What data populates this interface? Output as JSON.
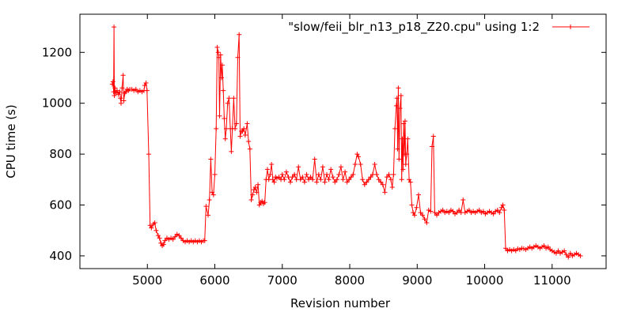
{
  "chart_data": {
    "type": "line",
    "xlabel": "Revision number",
    "ylabel": "CPU time (s)",
    "xlim": [
      4000,
      11800
    ],
    "ylim": [
      350,
      1350
    ],
    "x_ticks": [
      5000,
      6000,
      7000,
      8000,
      9000,
      10000,
      11000
    ],
    "y_ticks": [
      400,
      600,
      800,
      1000,
      1200
    ],
    "grid": false,
    "legend_position": "top-right",
    "color": "#ff0000",
    "marker": "plus",
    "series": [
      {
        "name": "\"slow/feii_blr_n13_p18_Z20.cpu\" using 1:2",
        "points": [
          [
            4480,
            1075
          ],
          [
            4490,
            1085
          ],
          [
            4500,
            1045
          ],
          [
            4505,
            1300
          ],
          [
            4510,
            1030
          ],
          [
            4520,
            1060
          ],
          [
            4530,
            1040
          ],
          [
            4550,
            1050
          ],
          [
            4570,
            1035
          ],
          [
            4590,
            1045
          ],
          [
            4600,
            1020
          ],
          [
            4610,
            1000
          ],
          [
            4625,
            1060
          ],
          [
            4640,
            1110
          ],
          [
            4650,
            1010
          ],
          [
            4665,
            1040
          ],
          [
            4680,
            1045
          ],
          [
            4700,
            1055
          ],
          [
            4720,
            1050
          ],
          [
            4740,
            1055
          ],
          [
            4770,
            1055
          ],
          [
            4800,
            1050
          ],
          [
            4830,
            1055
          ],
          [
            4860,
            1045
          ],
          [
            4890,
            1050
          ],
          [
            4920,
            1045
          ],
          [
            4950,
            1050
          ],
          [
            4960,
            1070
          ],
          [
            4980,
            1080
          ],
          [
            4995,
            1050
          ],
          [
            5020,
            800
          ],
          [
            5040,
            520
          ],
          [
            5060,
            510
          ],
          [
            5090,
            525
          ],
          [
            5110,
            530
          ],
          [
            5130,
            500
          ],
          [
            5160,
            480
          ],
          [
            5180,
            470
          ],
          [
            5200,
            450
          ],
          [
            5220,
            440
          ],
          [
            5240,
            445
          ],
          [
            5260,
            460
          ],
          [
            5290,
            470
          ],
          [
            5320,
            465
          ],
          [
            5350,
            470
          ],
          [
            5380,
            465
          ],
          [
            5410,
            475
          ],
          [
            5440,
            485
          ],
          [
            5470,
            480
          ],
          [
            5500,
            470
          ],
          [
            5530,
            460
          ],
          [
            5560,
            455
          ],
          [
            5590,
            460
          ],
          [
            5620,
            455
          ],
          [
            5650,
            460
          ],
          [
            5680,
            455
          ],
          [
            5710,
            460
          ],
          [
            5740,
            455
          ],
          [
            5770,
            460
          ],
          [
            5800,
            455
          ],
          [
            5830,
            460
          ],
          [
            5850,
            460
          ],
          [
            5870,
            595
          ],
          [
            5900,
            560
          ],
          [
            5920,
            620
          ],
          [
            5940,
            780
          ],
          [
            5960,
            650
          ],
          [
            5980,
            640
          ],
          [
            6000,
            720
          ],
          [
            6020,
            900
          ],
          [
            6035,
            1220
          ],
          [
            6050,
            1200
          ],
          [
            6060,
            1180
          ],
          [
            6070,
            950
          ],
          [
            6085,
            1190
          ],
          [
            6100,
            1100
          ],
          [
            6110,
            1150
          ],
          [
            6125,
            1050
          ],
          [
            6140,
            940
          ],
          [
            6155,
            860
          ],
          [
            6170,
            900
          ],
          [
            6190,
            1000
          ],
          [
            6210,
            1020
          ],
          [
            6230,
            900
          ],
          [
            6245,
            810
          ],
          [
            6260,
            900
          ],
          [
            6280,
            1020
          ],
          [
            6300,
            900
          ],
          [
            6320,
            920
          ],
          [
            6340,
            1180
          ],
          [
            6360,
            1270
          ],
          [
            6375,
            870
          ],
          [
            6395,
            890
          ],
          [
            6410,
            890
          ],
          [
            6430,
            900
          ],
          [
            6450,
            875
          ],
          [
            6480,
            920
          ],
          [
            6500,
            850
          ],
          [
            6520,
            820
          ],
          [
            6540,
            620
          ],
          [
            6560,
            640
          ],
          [
            6580,
            660
          ],
          [
            6600,
            670
          ],
          [
            6620,
            650
          ],
          [
            6640,
            680
          ],
          [
            6660,
            600
          ],
          [
            6680,
            610
          ],
          [
            6700,
            615
          ],
          [
            6720,
            605
          ],
          [
            6740,
            610
          ],
          [
            6760,
            700
          ],
          [
            6780,
            740
          ],
          [
            6800,
            700
          ],
          [
            6820,
            720
          ],
          [
            6840,
            760
          ],
          [
            6860,
            700
          ],
          [
            6880,
            690
          ],
          [
            6900,
            710
          ],
          [
            6920,
            705
          ],
          [
            6950,
            710
          ],
          [
            6980,
            700
          ],
          [
            7000,
            720
          ],
          [
            7030,
            700
          ],
          [
            7060,
            730
          ],
          [
            7090,
            710
          ],
          [
            7120,
            690
          ],
          [
            7150,
            710
          ],
          [
            7180,
            720
          ],
          [
            7210,
            700
          ],
          [
            7240,
            750
          ],
          [
            7270,
            700
          ],
          [
            7300,
            710
          ],
          [
            7330,
            690
          ],
          [
            7360,
            720
          ],
          [
            7390,
            700
          ],
          [
            7420,
            710
          ],
          [
            7450,
            700
          ],
          [
            7480,
            780
          ],
          [
            7510,
            690
          ],
          [
            7540,
            720
          ],
          [
            7570,
            700
          ],
          [
            7600,
            750
          ],
          [
            7630,
            690
          ],
          [
            7660,
            720
          ],
          [
            7690,
            700
          ],
          [
            7720,
            740
          ],
          [
            7750,
            710
          ],
          [
            7780,
            690
          ],
          [
            7810,
            700
          ],
          [
            7840,
            720
          ],
          [
            7870,
            750
          ],
          [
            7900,
            700
          ],
          [
            7930,
            730
          ],
          [
            7960,
            690
          ],
          [
            7990,
            700
          ],
          [
            8020,
            710
          ],
          [
            8050,
            720
          ],
          [
            8080,
            760
          ],
          [
            8110,
            800
          ],
          [
            8130,
            790
          ],
          [
            8160,
            760
          ],
          [
            8190,
            700
          ],
          [
            8220,
            680
          ],
          [
            8250,
            690
          ],
          [
            8280,
            700
          ],
          [
            8310,
            710
          ],
          [
            8340,
            720
          ],
          [
            8370,
            760
          ],
          [
            8400,
            720
          ],
          [
            8430,
            700
          ],
          [
            8460,
            690
          ],
          [
            8490,
            680
          ],
          [
            8520,
            650
          ],
          [
            8550,
            710
          ],
          [
            8580,
            720
          ],
          [
            8610,
            700
          ],
          [
            8630,
            670
          ],
          [
            8650,
            720
          ],
          [
            8670,
            900
          ],
          [
            8690,
            990
          ],
          [
            8700,
            1020
          ],
          [
            8710,
            820
          ],
          [
            8720,
            1060
          ],
          [
            8730,
            780
          ],
          [
            8745,
            980
          ],
          [
            8760,
            1030
          ],
          [
            8770,
            700
          ],
          [
            8780,
            860
          ],
          [
            8790,
            740
          ],
          [
            8800,
            920
          ],
          [
            8810,
            800
          ],
          [
            8820,
            930
          ],
          [
            8830,
            760
          ],
          [
            8845,
            800
          ],
          [
            8860,
            860
          ],
          [
            8880,
            700
          ],
          [
            8900,
            690
          ],
          [
            8920,
            600
          ],
          [
            8940,
            570
          ],
          [
            8960,
            560
          ],
          [
            8990,
            590
          ],
          [
            9020,
            640
          ],
          [
            9050,
            570
          ],
          [
            9080,
            560
          ],
          [
            9110,
            545
          ],
          [
            9140,
            530
          ],
          [
            9170,
            580
          ],
          [
            9200,
            575
          ],
          [
            9220,
            830
          ],
          [
            9240,
            870
          ],
          [
            9260,
            570
          ],
          [
            9290,
            560
          ],
          [
            9320,
            570
          ],
          [
            9350,
            575
          ],
          [
            9380,
            580
          ],
          [
            9410,
            570
          ],
          [
            9440,
            575
          ],
          [
            9470,
            570
          ],
          [
            9500,
            580
          ],
          [
            9530,
            575
          ],
          [
            9560,
            565
          ],
          [
            9590,
            570
          ],
          [
            9620,
            580
          ],
          [
            9650,
            570
          ],
          [
            9680,
            620
          ],
          [
            9710,
            570
          ],
          [
            9740,
            575
          ],
          [
            9770,
            580
          ],
          [
            9800,
            570
          ],
          [
            9830,
            575
          ],
          [
            9860,
            570
          ],
          [
            9890,
            575
          ],
          [
            9920,
            580
          ],
          [
            9950,
            570
          ],
          [
            9980,
            575
          ],
          [
            10010,
            565
          ],
          [
            10040,
            570
          ],
          [
            10070,
            575
          ],
          [
            10100,
            570
          ],
          [
            10130,
            565
          ],
          [
            10160,
            575
          ],
          [
            10190,
            580
          ],
          [
            10220,
            570
          ],
          [
            10250,
            590
          ],
          [
            10270,
            600
          ],
          [
            10290,
            580
          ],
          [
            10310,
            430
          ],
          [
            10340,
            420
          ],
          [
            10370,
            425
          ],
          [
            10400,
            420
          ],
          [
            10430,
            425
          ],
          [
            10460,
            420
          ],
          [
            10490,
            428
          ],
          [
            10520,
            425
          ],
          [
            10550,
            430
          ],
          [
            10580,
            428
          ],
          [
            10610,
            425
          ],
          [
            10640,
            430
          ],
          [
            10670,
            435
          ],
          [
            10700,
            430
          ],
          [
            10730,
            435
          ],
          [
            10760,
            440
          ],
          [
            10790,
            435
          ],
          [
            10820,
            430
          ],
          [
            10850,
            435
          ],
          [
            10880,
            440
          ],
          [
            10910,
            430
          ],
          [
            10940,
            435
          ],
          [
            10970,
            425
          ],
          [
            11000,
            420
          ],
          [
            11030,
            415
          ],
          [
            11060,
            410
          ],
          [
            11090,
            420
          ],
          [
            11120,
            410
          ],
          [
            11150,
            415
          ],
          [
            11180,
            420
          ],
          [
            11210,
            405
          ],
          [
            11240,
            395
          ],
          [
            11270,
            410
          ],
          [
            11300,
            400
          ],
          [
            11330,
            405
          ],
          [
            11360,
            410
          ],
          [
            11390,
            405
          ],
          [
            11420,
            400
          ]
        ]
      }
    ]
  }
}
